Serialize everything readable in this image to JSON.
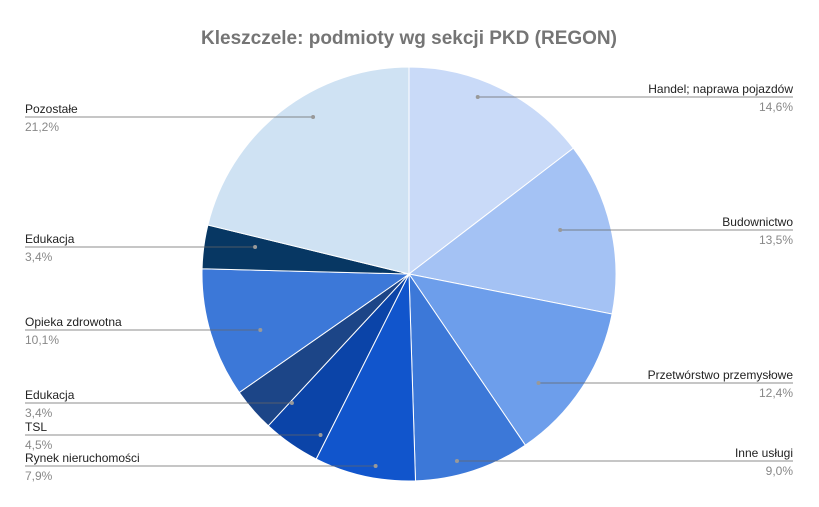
{
  "chart_data": {
    "type": "pie",
    "title": "Kleszczele: podmioty wg sekcji PKD (REGON)",
    "categories": [
      "Handel; naprawa pojazdów",
      "Budownictwo",
      "Przetwórstwo przemysłowe",
      "Inne usługi",
      "Rynek nieruchomości",
      "TSL",
      "Edukacja",
      "Opieka zdrowotna",
      "Edukacja",
      "Pozostałe"
    ],
    "values": [
      14.6,
      13.5,
      12.4,
      9.0,
      7.9,
      4.5,
      3.4,
      10.1,
      3.4,
      21.2
    ],
    "value_labels": [
      "14,6%",
      "13,5%",
      "12,4%",
      "9,0%",
      "7,9%",
      "4,5%",
      "3,4%",
      "10,1%",
      "3,4%",
      "21,2%"
    ],
    "colors": [
      "#c9daf8",
      "#a4c2f4",
      "#6d9eeb",
      "#3c78d8",
      "#1155cc",
      "#0b44a8",
      "#1c4587",
      "#3c78d8",
      "#073763",
      "#cfe2f3"
    ]
  }
}
